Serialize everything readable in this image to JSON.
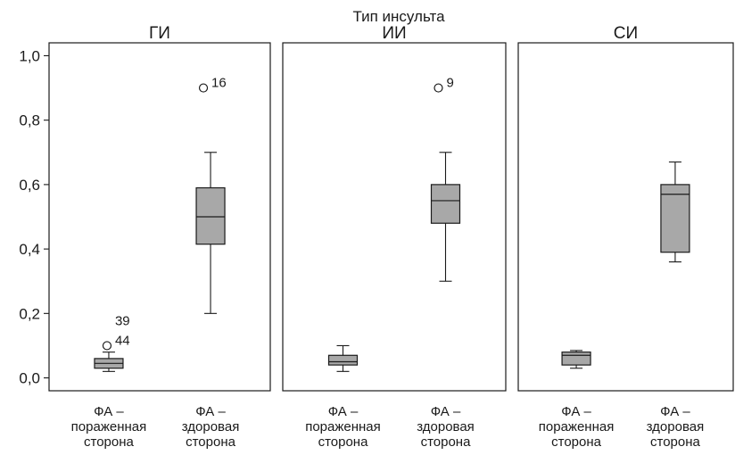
{
  "chart_data": {
    "type": "box",
    "supertitle": "Тип инсульта",
    "ylim": [
      -0.04,
      1.04
    ],
    "y_ticks": [
      {
        "value": 0.0,
        "label": "0,0"
      },
      {
        "value": 0.2,
        "label": "0,2"
      },
      {
        "value": 0.4,
        "label": "0,4"
      },
      {
        "value": 0.6,
        "label": "0,6"
      },
      {
        "value": 0.8,
        "label": "0,8"
      },
      {
        "value": 1.0,
        "label": "1,0"
      }
    ],
    "categories": [
      [
        "ФА –",
        "пораженная",
        "сторона"
      ],
      [
        "ФА –",
        "здоровая",
        "сторона"
      ]
    ],
    "panels": [
      {
        "title": "ГИ",
        "boxes": [
          {
            "min": 0.02,
            "q1": 0.03,
            "median": 0.045,
            "q3": 0.06,
            "max": 0.08,
            "outliers": [
              {
                "value": 0.1,
                "label": "44"
              }
            ],
            "extra_labels": [
              {
                "value": 0.18,
                "label": "39"
              }
            ]
          },
          {
            "min": 0.2,
            "q1": 0.415,
            "median": 0.5,
            "q3": 0.59,
            "max": 0.7,
            "outliers": [
              {
                "value": 0.9,
                "label": "16"
              }
            ],
            "extra_labels": []
          }
        ]
      },
      {
        "title": "ИИ",
        "boxes": [
          {
            "min": 0.02,
            "q1": 0.04,
            "median": 0.05,
            "q3": 0.07,
            "max": 0.1,
            "outliers": [],
            "extra_labels": []
          },
          {
            "min": 0.3,
            "q1": 0.48,
            "median": 0.55,
            "q3": 0.6,
            "max": 0.7,
            "outliers": [
              {
                "value": 0.9,
                "label": "9"
              }
            ],
            "extra_labels": []
          }
        ]
      },
      {
        "title": "СИ",
        "boxes": [
          {
            "min": 0.03,
            "q1": 0.04,
            "median": 0.07,
            "q3": 0.08,
            "max": 0.085,
            "outliers": [],
            "extra_labels": []
          },
          {
            "min": 0.36,
            "q1": 0.39,
            "median": 0.57,
            "q3": 0.6,
            "max": 0.67,
            "outliers": [],
            "extra_labels": []
          }
        ]
      }
    ]
  }
}
